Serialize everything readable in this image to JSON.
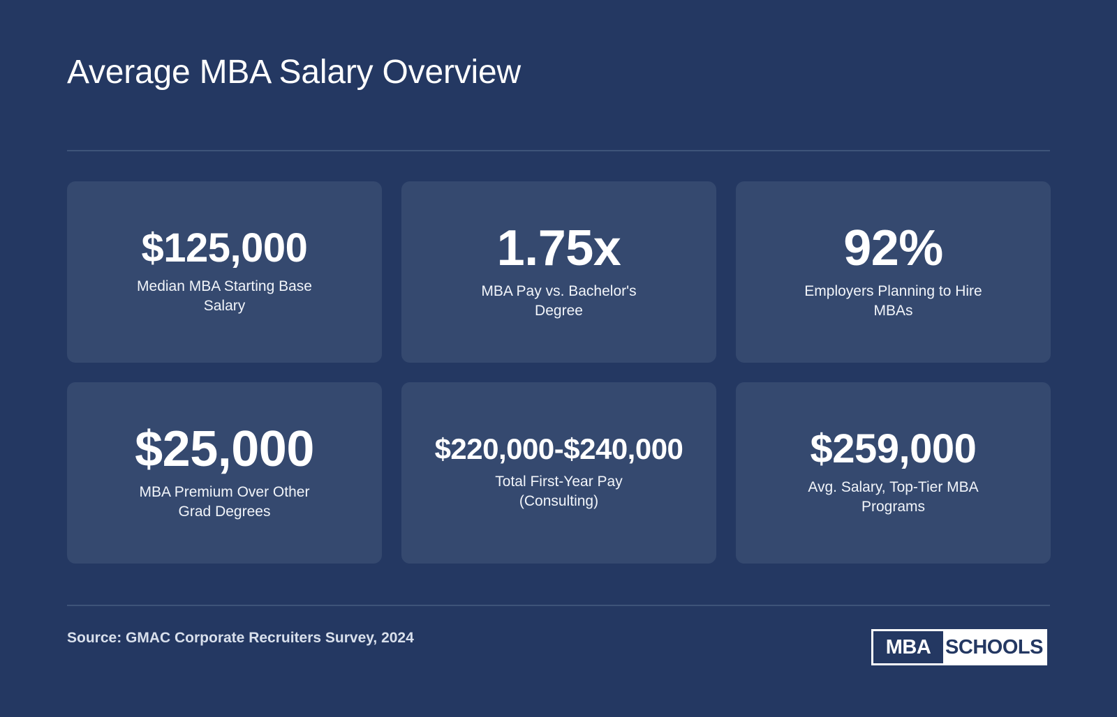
{
  "title": "Average MBA Salary Overview",
  "stats": [
    {
      "value": "$125,000",
      "label": "Median MBA Starting Base Salary"
    },
    {
      "value": "1.75x",
      "label": "MBA Pay vs. Bachelor's Degree"
    },
    {
      "value": "92%",
      "label": "Employers Planning to Hire MBAs"
    },
    {
      "value": "$25,000",
      "label": "MBA Premium Over Other Grad Degrees"
    },
    {
      "value": "$220,000-$240,000",
      "label": "Total First-Year Pay (Consulting)"
    },
    {
      "value": "$259,000",
      "label": "Avg. Salary, Top-Tier MBA Programs"
    }
  ],
  "source": "Source: GMAC Corporate Recruiters Survey, 2024",
  "logo": {
    "left": "MBA",
    "right": "SCHOOLS"
  },
  "colors": {
    "background": "#243862",
    "card": "#35496f",
    "divider": "#3e5479",
    "text": "#ffffff"
  }
}
